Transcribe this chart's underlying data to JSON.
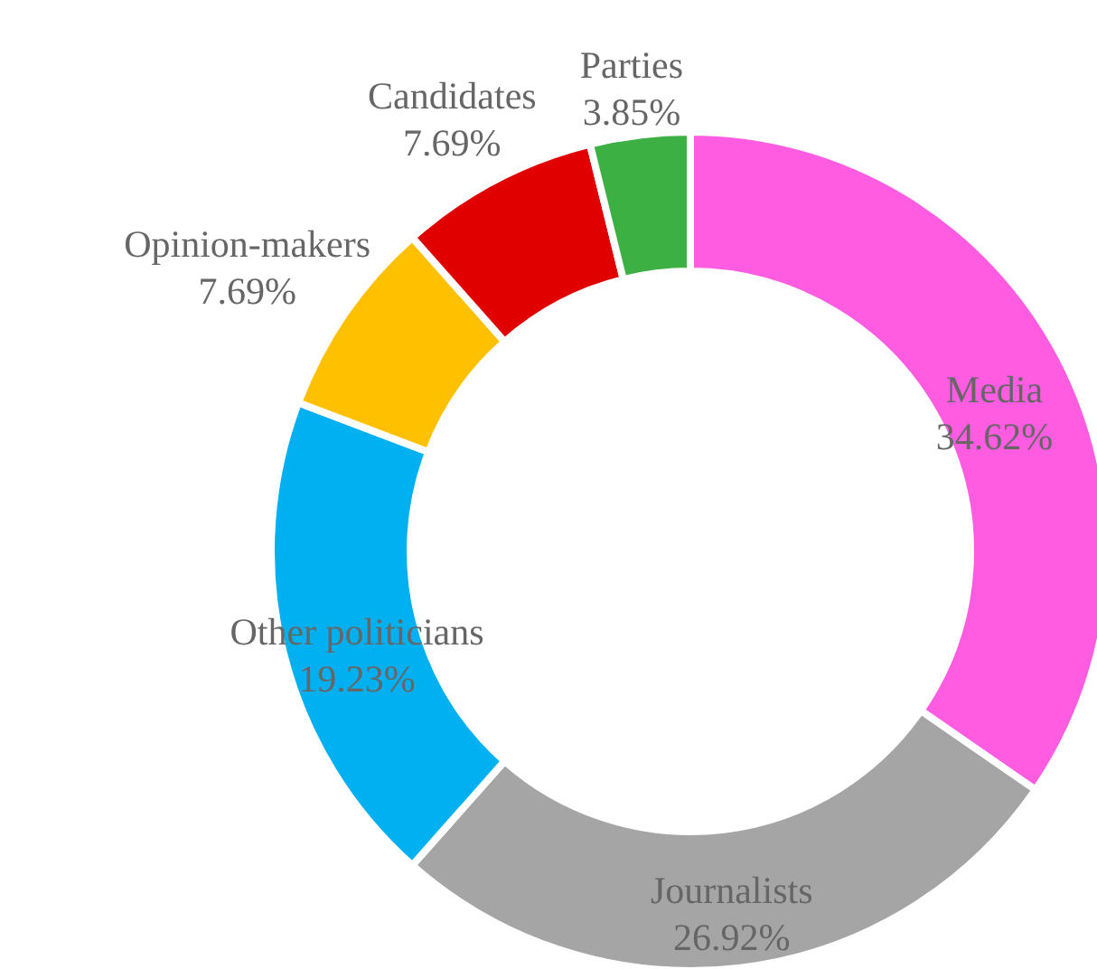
{
  "chart_data": {
    "type": "donut",
    "categories": [
      "Media",
      "Journalists",
      "Other politicians",
      "Opinion-makers",
      "Candidates",
      "Parties"
    ],
    "values": [
      34.62,
      26.92,
      19.23,
      7.69,
      7.69,
      3.85
    ],
    "value_labels": [
      "34.62%",
      "26.92%",
      "19.23%",
      "7.69%",
      "7.69%",
      "3.85%"
    ],
    "colors": [
      "#ff5ce1",
      "#a5a5a5",
      "#00b0f0",
      "#ffc000",
      "#e00000",
      "#3cb043"
    ]
  }
}
